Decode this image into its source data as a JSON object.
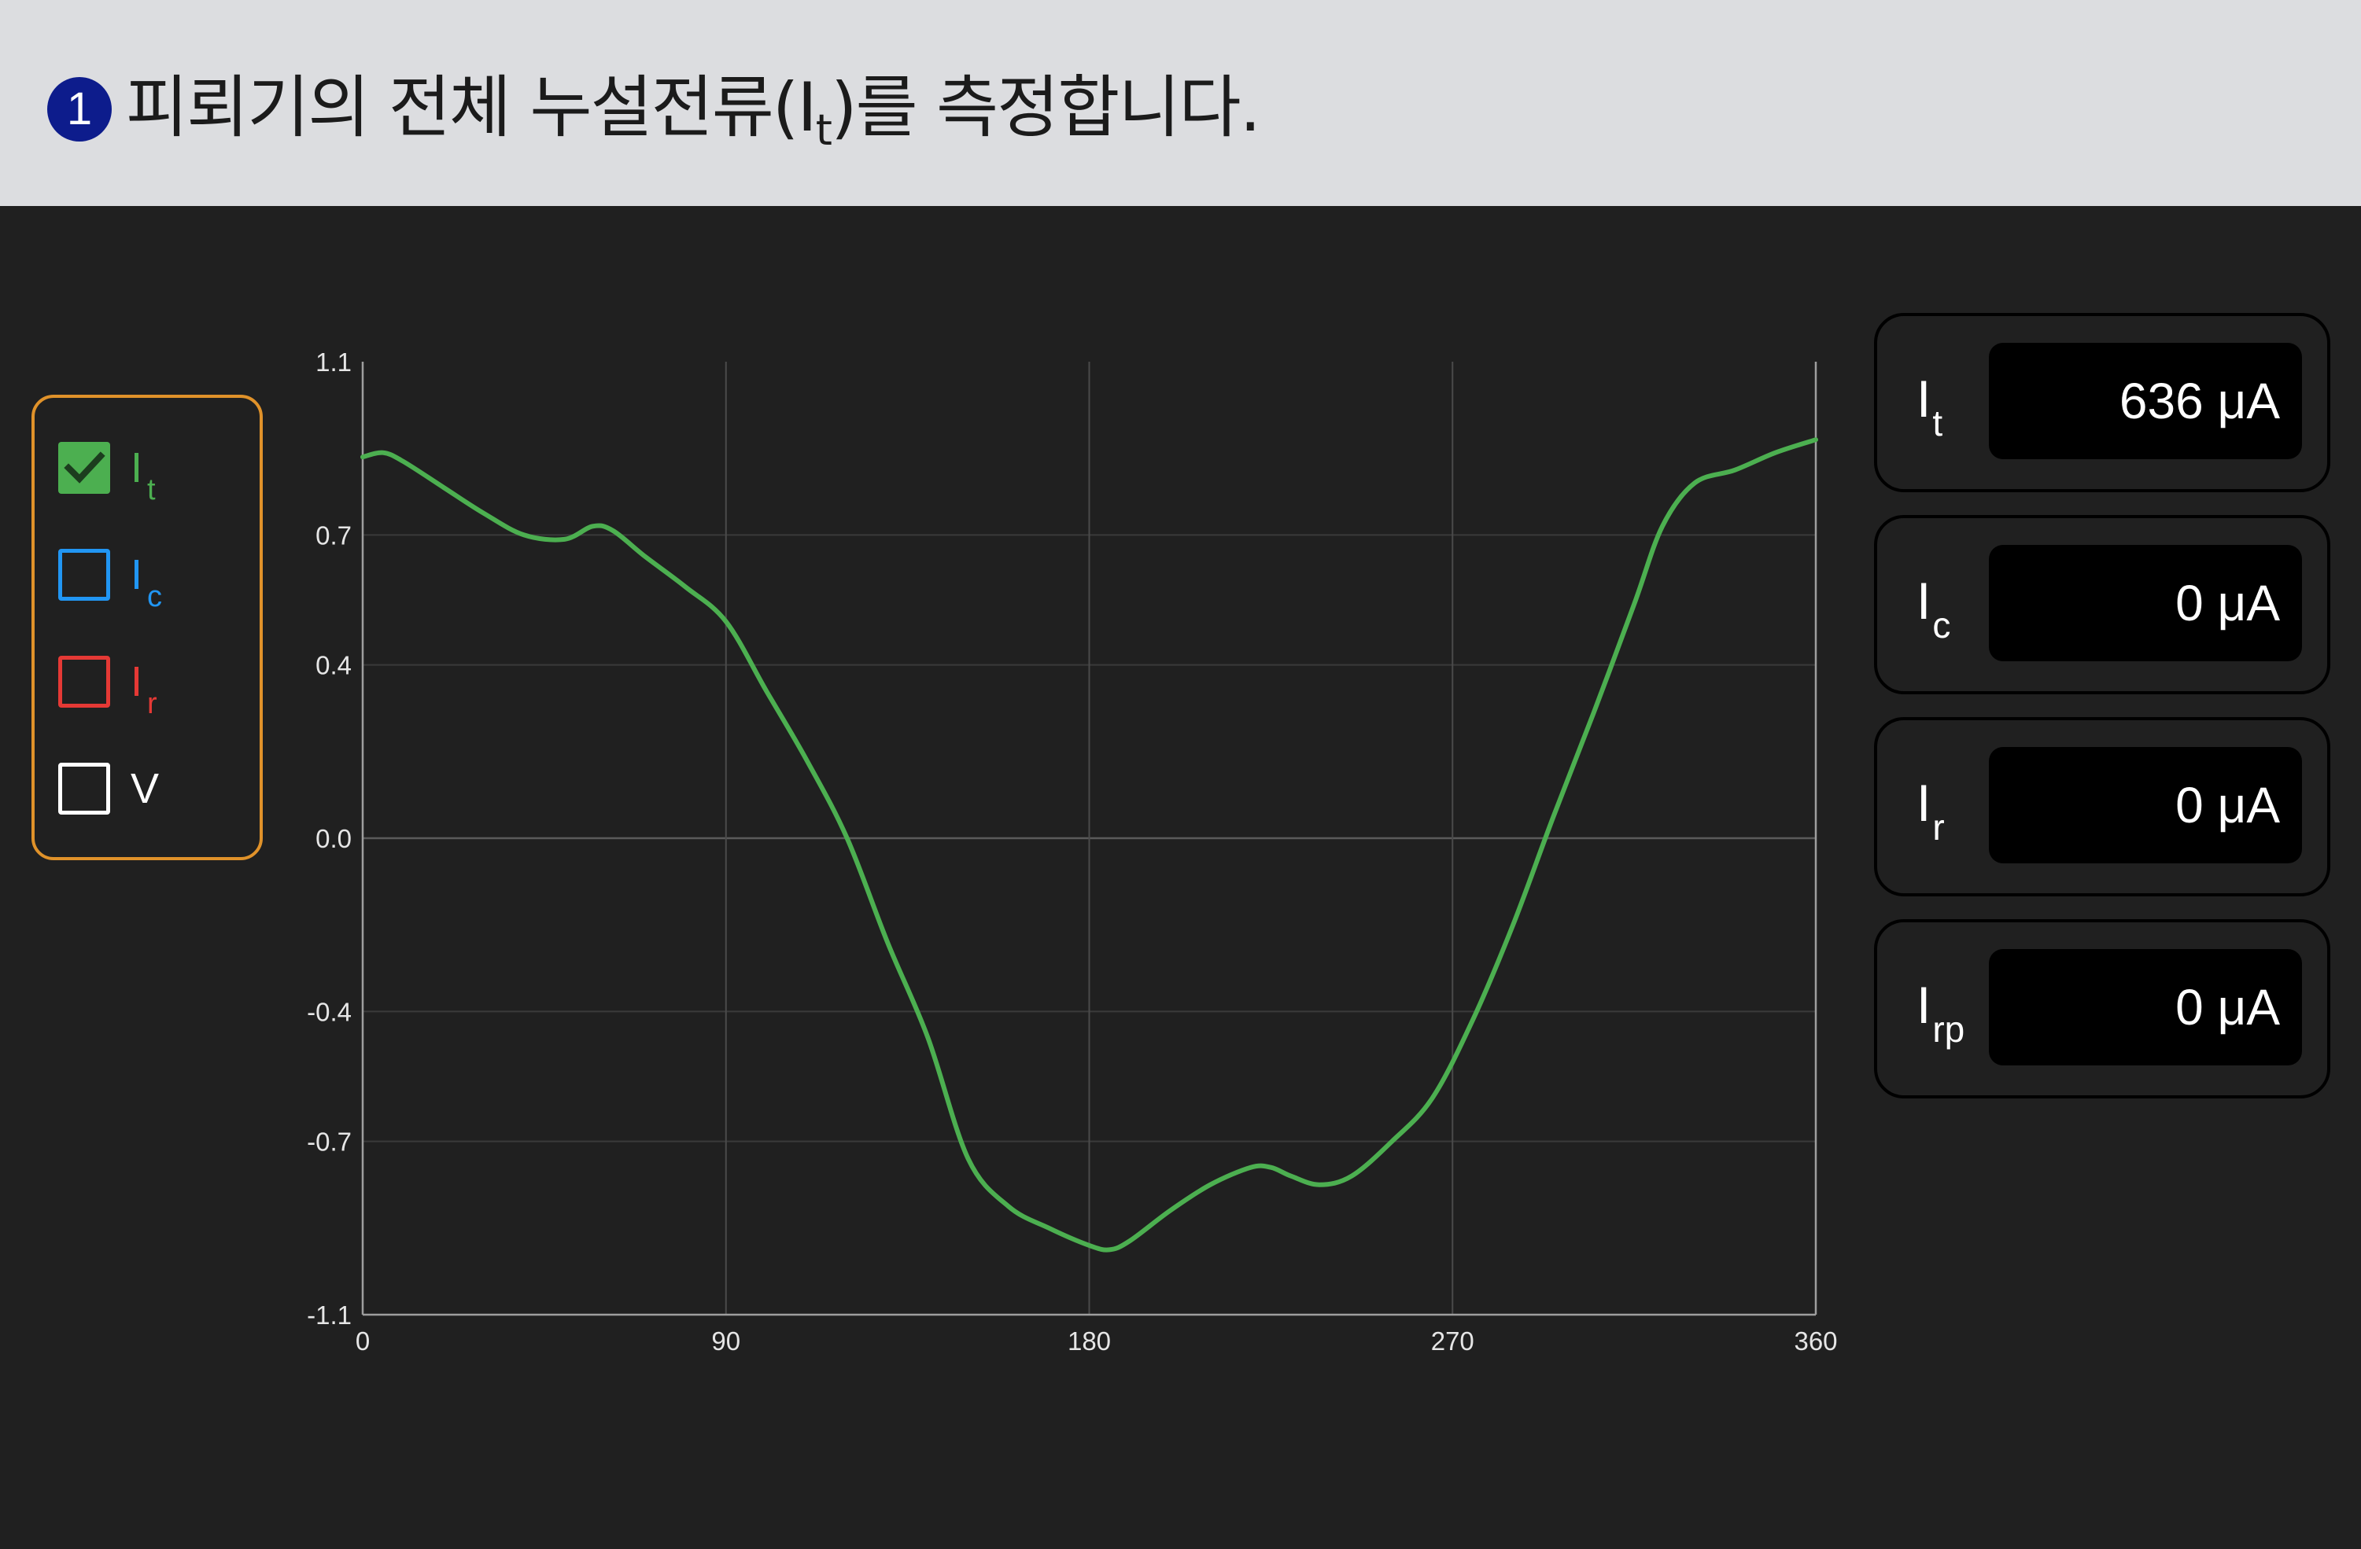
{
  "header": {
    "step_number": "1",
    "title_before": "피뢰기의 전체 누설전류(I",
    "title_sub": "t",
    "title_after": ")를 측정합니다."
  },
  "legend": {
    "items": [
      {
        "label": "I",
        "sub": "t",
        "checked": true,
        "color": "#4caf50"
      },
      {
        "label": "I",
        "sub": "c",
        "checked": false,
        "color": "#2196f3"
      },
      {
        "label": "I",
        "sub": "r",
        "checked": false,
        "color": "#e53935"
      },
      {
        "label": "V",
        "sub": "",
        "checked": false,
        "color": "#ffffff"
      }
    ]
  },
  "readouts": [
    {
      "label": "I",
      "sub": "t",
      "value": "636 μA",
      "color": "#4caf50"
    },
    {
      "label": "I",
      "sub": "c",
      "value": "0 μA",
      "color": "#2196f3"
    },
    {
      "label": "I",
      "sub": "r",
      "value": "0 μA",
      "color": "#e53935"
    },
    {
      "label": "I",
      "sub": "rp",
      "value": "0 μA",
      "color": "#e53935"
    }
  ],
  "chart_data": {
    "type": "line",
    "x_ticks": [
      "0",
      "90",
      "180",
      "270",
      "360"
    ],
    "y_ticks": [
      "1.1",
      "0.7",
      "0.4",
      "0.0",
      "-0.4",
      "-0.7",
      "-1.1"
    ],
    "xlim": [
      0,
      360
    ],
    "ylim": [
      -1.1,
      1.1
    ],
    "grid": true,
    "series": [
      {
        "color": "#4caf50",
        "x": [
          0,
          5,
          10,
          20,
          30,
          40,
          50,
          57,
          62,
          70,
          80,
          90,
          100,
          110,
          120,
          130,
          140,
          150,
          160,
          170,
          180,
          185,
          190,
          200,
          210,
          220,
          225,
          230,
          237,
          245,
          255,
          265,
          275,
          285,
          295,
          305,
          315,
          322,
          330,
          340,
          350,
          360
        ],
        "y": [
          0.88,
          0.89,
          0.87,
          0.81,
          0.75,
          0.7,
          0.69,
          0.72,
          0.71,
          0.65,
          0.58,
          0.5,
          0.34,
          0.18,
          0.0,
          -0.24,
          -0.46,
          -0.74,
          -0.85,
          -0.9,
          -0.94,
          -0.95,
          -0.93,
          -0.86,
          -0.8,
          -0.76,
          -0.76,
          -0.78,
          -0.8,
          -0.78,
          -0.7,
          -0.6,
          -0.42,
          -0.2,
          0.05,
          0.29,
          0.54,
          0.72,
          0.82,
          0.85,
          0.89,
          0.92
        ]
      }
    ]
  }
}
